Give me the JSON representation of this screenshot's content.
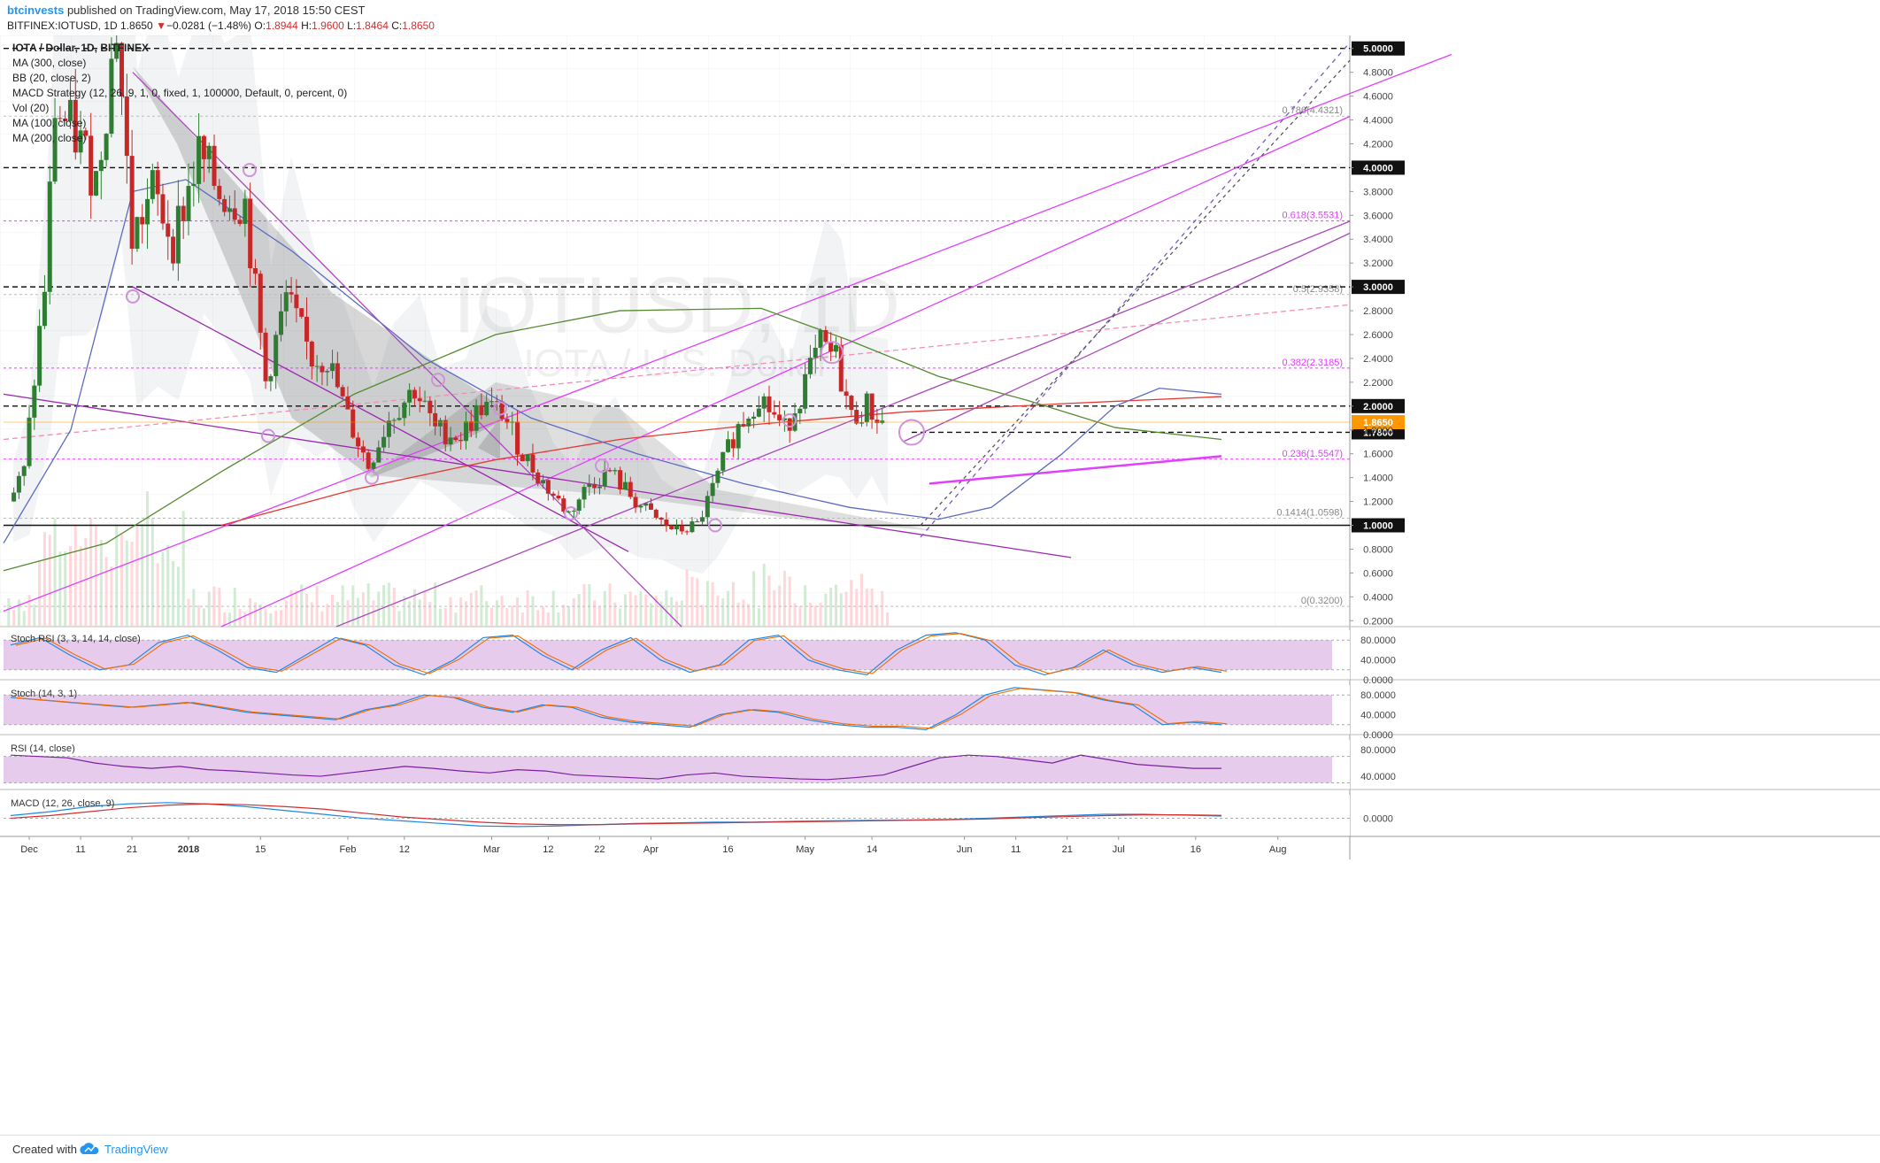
{
  "header": {
    "author": "btcinvests",
    "published": "published on TradingView.com, May 17, 2018 15:50 CEST",
    "symbol": "BITFINEX:IOTUSD, 1D",
    "last": "1.8650",
    "change_arrow": "▼",
    "change": "−0.0281 (−1.48%)",
    "o_label": "O:",
    "o": "1.8944",
    "h_label": "H:",
    "h": "1.9600",
    "l_label": "L:",
    "l": "1.8464",
    "c_label": "C:",
    "c": "1.8650"
  },
  "watermark": {
    "line1": "IOTUSD, 1D",
    "line2": "IOTA / U.S. Dollar"
  },
  "legend": [
    "IOTA / Dollar, 1D, BITFINEX",
    "MA (300, close)",
    "BB (20, close, 2)",
    "MACD Strategy (12, 26, 9, 1, 0, fixed, 1, 100000, Default, 0, percent, 0)",
    "Vol (20)",
    "MA (100, close)",
    "MA (200, close)"
  ],
  "footer": {
    "created_with": "Created with",
    "brand": "TradingView"
  },
  "colors": {
    "up": "#2e7d32",
    "down": "#c62828",
    "fib": "#e040fb",
    "accent": "#2196f3",
    "current": "#ff9800",
    "band": "#e1bee7"
  },
  "chart_data": [
    {
      "type": "candlestick",
      "title": "IOTA / Dollar, 1D, BITFINEX",
      "x_ticks": [
        "Dec",
        "11",
        "21",
        "2018",
        "15",
        "Feb",
        "12",
        "Mar",
        "12",
        "22",
        "Apr",
        "16",
        "May",
        "14",
        "Jun",
        "11",
        "21",
        "Jul",
        "16",
        "Aug"
      ],
      "y_ticks": [
        "0.2000",
        "0.4000",
        "0.6000",
        "0.8000",
        "1.0000",
        "1.2000",
        "1.4000",
        "1.6000",
        "1.8000",
        "2.0000",
        "2.2000",
        "2.4000",
        "2.6000",
        "2.8000",
        "3.0000",
        "3.2000",
        "3.4000",
        "3.6000",
        "3.8000",
        "4.0000",
        "4.2000",
        "4.4000",
        "4.6000",
        "4.8000",
        "5.0000"
      ],
      "ylim": [
        0.15,
        5.05
      ],
      "horizontal_levels": [
        {
          "value": 5.0,
          "label": "5.0000"
        },
        {
          "value": 4.0,
          "label": "4.0000"
        },
        {
          "value": 3.0,
          "label": "3.0000"
        },
        {
          "value": 2.0,
          "label": "2.0000"
        },
        {
          "value": 1.78,
          "label": "1.7800"
        },
        {
          "value": 1.0,
          "label": "1.0000"
        }
      ],
      "current_price": {
        "value": 1.865,
        "label": "1.8650"
      },
      "fib_levels": [
        {
          "value": 4.4321,
          "label": "0.786(4.4321)"
        },
        {
          "value": 3.5531,
          "label": "0.618(3.5531)"
        },
        {
          "value": 2.9358,
          "label": "0.5(2.9358)"
        },
        {
          "value": 2.3185,
          "label": "0.382(2.3185)"
        },
        {
          "value": 1.5547,
          "label": "0.236(1.5547)"
        },
        {
          "value": 1.0598,
          "label": "0.1414(1.0598)"
        },
        {
          "value": 0.32,
          "label": "0(0.3200)"
        }
      ],
      "close_series": [
        {
          "date": "2017-11-28",
          "close": 1.2
        },
        {
          "date": "2017-12-01",
          "close": 1.45
        },
        {
          "date": "2017-12-05",
          "close": 3.0
        },
        {
          "date": "2017-12-07",
          "close": 4.5
        },
        {
          "date": "2017-12-12",
          "close": 4.2
        },
        {
          "date": "2017-12-15",
          "close": 3.9
        },
        {
          "date": "2017-12-19",
          "close": 5.2
        },
        {
          "date": "2017-12-22",
          "close": 3.4
        },
        {
          "date": "2017-12-26",
          "close": 3.8
        },
        {
          "date": "2017-12-30",
          "close": 3.4
        },
        {
          "date": "2018-01-04",
          "close": 4.1
        },
        {
          "date": "2018-01-08",
          "close": 3.8
        },
        {
          "date": "2018-01-13",
          "close": 3.7
        },
        {
          "date": "2018-01-17",
          "close": 2.2
        },
        {
          "date": "2018-01-21",
          "close": 2.9
        },
        {
          "date": "2018-01-26",
          "close": 2.4
        },
        {
          "date": "2018-01-29",
          "close": 2.4
        },
        {
          "date": "2018-02-02",
          "close": 1.9
        },
        {
          "date": "2018-02-06",
          "close": 1.5
        },
        {
          "date": "2018-02-10",
          "close": 1.9
        },
        {
          "date": "2018-02-15",
          "close": 2.15
        },
        {
          "date": "2018-02-19",
          "close": 1.8
        },
        {
          "date": "2018-02-24",
          "close": 1.75
        },
        {
          "date": "2018-02-28",
          "close": 2.0
        },
        {
          "date": "2018-03-04",
          "close": 1.95
        },
        {
          "date": "2018-03-08",
          "close": 1.6
        },
        {
          "date": "2018-03-13",
          "close": 1.3
        },
        {
          "date": "2018-03-17",
          "close": 1.1
        },
        {
          "date": "2018-03-21",
          "close": 1.35
        },
        {
          "date": "2018-03-25",
          "close": 1.45
        },
        {
          "date": "2018-03-30",
          "close": 1.2
        },
        {
          "date": "2018-04-03",
          "close": 1.05
        },
        {
          "date": "2018-04-07",
          "close": 0.95
        },
        {
          "date": "2018-04-11",
          "close": 1.0
        },
        {
          "date": "2018-04-14",
          "close": 1.3
        },
        {
          "date": "2018-04-18",
          "close": 1.75
        },
        {
          "date": "2018-04-23",
          "close": 2.1
        },
        {
          "date": "2018-04-28",
          "close": 1.8
        },
        {
          "date": "2018-05-02",
          "close": 2.2
        },
        {
          "date": "2018-05-05",
          "close": 2.5
        },
        {
          "date": "2018-05-08",
          "close": 2.4
        },
        {
          "date": "2018-05-11",
          "close": 1.9
        },
        {
          "date": "2018-05-14",
          "close": 2.0
        },
        {
          "date": "2018-05-17",
          "close": 1.865
        }
      ]
    },
    {
      "type": "line",
      "title": "Stoch RSI (3, 3, 14, 14, close)",
      "y_ticks": [
        "0.0000",
        "40.0000",
        "80.0000"
      ],
      "ylim": [
        0,
        100
      ],
      "band": [
        20,
        80
      ],
      "series": [
        {
          "values": [
            70,
            85,
            50,
            20,
            30,
            75,
            90,
            60,
            25,
            15,
            50,
            85,
            70,
            30,
            10,
            40,
            85,
            90,
            50,
            20,
            60,
            85,
            40,
            15,
            30,
            80,
            90,
            40,
            20,
            10,
            60,
            90,
            95,
            80,
            30,
            10,
            25,
            60,
            30,
            15,
            25,
            15
          ]
        }
      ]
    },
    {
      "type": "line",
      "title": "Stoch (14, 3, 1)",
      "y_ticks": [
        "0.0000",
        "40.0000",
        "80.0000"
      ],
      "ylim": [
        0,
        100
      ],
      "band": [
        20,
        80
      ],
      "series": [
        {
          "values": [
            75,
            70,
            65,
            60,
            55,
            60,
            65,
            55,
            45,
            40,
            35,
            30,
            50,
            60,
            80,
            75,
            55,
            45,
            60,
            55,
            35,
            25,
            20,
            15,
            40,
            50,
            45,
            30,
            20,
            15,
            15,
            10,
            40,
            80,
            95,
            90,
            85,
            70,
            60,
            20,
            25,
            20
          ]
        }
      ]
    },
    {
      "type": "line",
      "title": "RSI (14, close)",
      "y_ticks": [
        "40.0000",
        "80.0000"
      ],
      "ylim": [
        20,
        95
      ],
      "band": [
        30,
        70
      ],
      "series": [
        {
          "values": [
            72,
            70,
            68,
            60,
            55,
            52,
            55,
            50,
            48,
            45,
            42,
            40,
            45,
            50,
            55,
            52,
            48,
            45,
            50,
            48,
            42,
            40,
            38,
            36,
            42,
            45,
            40,
            38,
            36,
            35,
            38,
            42,
            55,
            68,
            72,
            70,
            65,
            60,
            72,
            65,
            58,
            55,
            52,
            52
          ]
        }
      ]
    },
    {
      "type": "line",
      "title": "MACD (12, 26, close, 9)",
      "y_ticks": [
        "0.0000"
      ],
      "ylim": [
        -0.7,
        0.9
      ],
      "series": [
        {
          "values": [
            0.1,
            0.25,
            0.45,
            0.55,
            0.6,
            0.55,
            0.45,
            0.3,
            0.15,
            0.0,
            -0.1,
            -0.2,
            -0.3,
            -0.32,
            -0.3,
            -0.25,
            -0.2,
            -0.18,
            -0.15,
            -0.15,
            -0.12,
            -0.1,
            -0.08,
            -0.07,
            -0.05,
            0.0,
            0.05,
            0.1,
            0.15,
            0.15,
            0.12,
            0.08
          ]
        },
        {
          "values": [
            0.0,
            0.1,
            0.25,
            0.4,
            0.5,
            0.55,
            0.52,
            0.45,
            0.35,
            0.2,
            0.05,
            -0.05,
            -0.15,
            -0.22,
            -0.25,
            -0.25,
            -0.22,
            -0.2,
            -0.18,
            -0.16,
            -0.14,
            -0.12,
            -0.1,
            -0.08,
            -0.06,
            -0.03,
            0.02,
            0.06,
            0.1,
            0.13,
            0.13,
            0.11
          ]
        }
      ]
    }
  ]
}
